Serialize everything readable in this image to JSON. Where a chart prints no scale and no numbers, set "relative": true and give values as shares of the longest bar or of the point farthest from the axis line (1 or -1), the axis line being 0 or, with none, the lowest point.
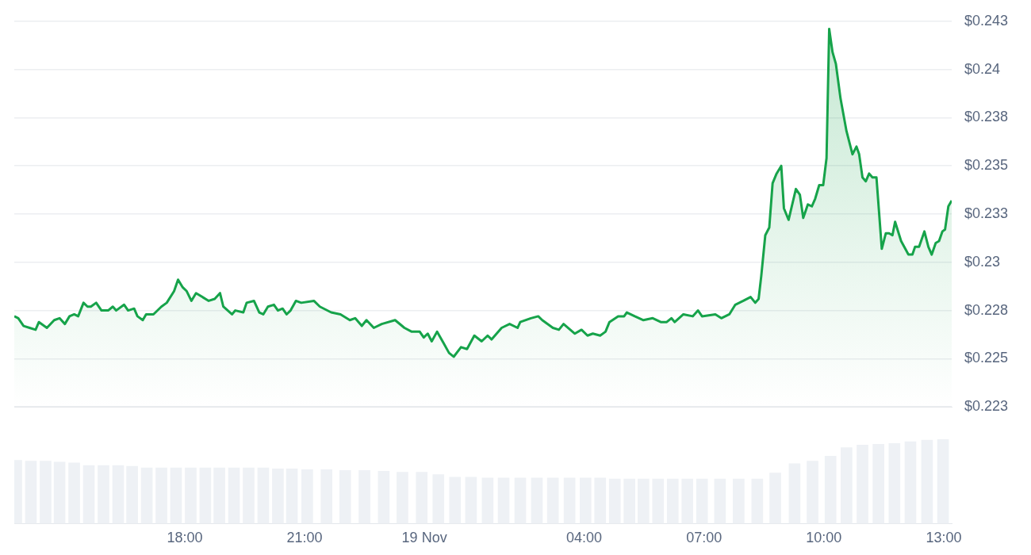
{
  "chart_data": [
    {
      "type": "area",
      "xlim": [
        "--11-18T13:44",
        "--11-19T13:12"
      ],
      "ylim": [
        0.2225,
        0.2425
      ],
      "tick_labels": "y",
      "grid": "y",
      "yticks": [
        {
          "value": 0.2225,
          "label": "$0.223"
        },
        {
          "value": 0.225,
          "label": "$0.225"
        },
        {
          "value": 0.2275,
          "label": "$0.228"
        },
        {
          "value": 0.23,
          "label": "$0.23"
        },
        {
          "value": 0.2325,
          "label": "$0.233"
        },
        {
          "value": 0.235,
          "label": "$0.235"
        },
        {
          "value": 0.2375,
          "label": "$0.238"
        },
        {
          "value": 0.24,
          "label": "$0.24"
        },
        {
          "value": 0.2425,
          "label": "$0.243"
        }
      ],
      "series": [
        {
          "color": "#16a34a",
          "x": [
            "--11-18T13:44",
            "--11-18T13:50",
            "--11-18T13:58",
            "--11-18T14:07",
            "--11-18T14:16",
            "--11-18T14:21",
            "--11-18T14:33",
            "--11-18T14:44",
            "--11-18T14:52",
            "--11-18T15:00",
            "--11-18T15:07",
            "--11-18T15:14",
            "--11-18T15:20",
            "--11-18T15:28",
            "--11-18T15:34",
            "--11-18T15:39",
            "--11-18T15:47",
            "--11-18T15:55",
            "--11-18T16:05",
            "--11-18T16:12",
            "--11-18T16:17",
            "--11-18T16:29",
            "--11-18T16:35",
            "--11-18T16:44",
            "--11-18T16:49",
            "--11-18T16:57",
            "--11-18T17:02",
            "--11-18T17:13",
            "--11-18T17:25",
            "--11-18T17:33",
            "--11-18T17:44",
            "--11-18T17:50",
            "--11-18T17:57",
            "--11-18T18:03",
            "--11-18T18:10",
            "--11-18T18:17",
            "--11-18T18:36",
            "--11-18T18:45",
            "--11-18T18:53",
            "--11-18T18:58",
            "--11-18T19:11",
            "--11-18T19:16",
            "--11-18T19:28",
            "--11-18T19:33",
            "--11-18T19:44",
            "--11-18T19:52",
            "--11-18T19:58",
            "--11-18T20:05",
            "--11-18T20:14",
            "--11-18T20:20",
            "--11-18T20:27",
            "--11-18T20:33",
            "--11-18T20:39",
            "--11-18T20:47",
            "--11-18T20:55",
            "--11-18T21:14",
            "--11-18T21:23",
            "--11-18T21:40",
            "--11-18T21:54",
            "--11-18T22:08",
            "--11-18T22:16",
            "--11-18T22:26",
            "--11-18T22:33",
            "--11-18T22:44",
            "--11-18T22:56",
            "--11-18T23:16",
            "--11-18T23:30",
            "--11-18T23:41",
            "--11-18T23:53",
            "--11-18T23:59",
            "--11-19T00:05",
            "--11-19T00:11",
            "--11-19T00:19",
            "--11-19T00:29",
            "--11-19T00:37",
            "--11-19T00:44",
            "--11-19T00:55",
            "--11-19T01:04",
            "--11-19T01:15",
            "--11-19T01:26",
            "--11-19T01:35",
            "--11-19T01:41",
            "--11-19T01:56",
            "--11-19T02:08",
            "--11-19T02:20",
            "--11-19T02:24",
            "--11-19T02:40",
            "--11-19T02:51",
            "--11-19T02:57",
            "--11-19T03:13",
            "--11-19T03:22",
            "--11-19T03:29",
            "--11-19T03:46",
            "--11-19T03:56",
            "--11-19T04:05",
            "--11-19T04:13",
            "--11-19T04:24",
            "--11-19T04:32",
            "--11-19T04:38",
            "--11-19T04:51",
            "--11-19T05:00",
            "--11-19T05:04",
            "--11-19T05:16",
            "--11-19T05:29",
            "--11-19T05:43",
            "--11-19T05:55",
            "--11-19T06:04",
            "--11-19T06:11",
            "--11-19T06:16",
            "--11-19T06:29",
            "--11-19T06:43",
            "--11-19T06:51",
            "--11-19T06:57",
            "--11-19T07:17",
            "--11-19T07:26",
            "--11-19T07:38",
            "--11-19T07:47",
            "--11-19T07:59",
            "--11-19T08:10",
            "--11-19T08:17",
            "--11-19T08:22",
            "--11-19T08:26",
            "--11-19T08:32",
            "--11-19T08:38",
            "--11-19T08:43",
            "--11-19T08:49",
            "--11-19T08:56",
            "--11-19T09:00",
            "--11-19T09:07",
            "--11-19T09:18",
            "--11-19T09:24",
            "--11-19T09:29",
            "--11-19T09:36",
            "--11-19T09:42",
            "--11-19T09:47",
            "--11-19T09:53",
            "--11-19T09:59",
            "--11-19T10:04",
            "--11-19T10:08",
            "--11-19T10:13",
            "--11-19T10:18",
            "--11-19T10:25",
            "--11-19T10:34",
            "--11-19T10:43",
            "--11-19T10:49",
            "--11-19T10:53",
            "--11-19T10:58",
            "--11-19T11:03",
            "--11-19T11:08",
            "--11-19T11:13",
            "--11-19T11:19",
            "--11-19T11:27",
            "--11-19T11:33",
            "--11-19T11:38",
            "--11-19T11:43",
            "--11-19T11:47",
            "--11-19T11:56",
            "--11-19T12:07",
            "--11-19T12:13",
            "--11-19T12:17",
            "--11-19T12:23",
            "--11-19T12:31",
            "--11-19T12:37",
            "--11-19T12:42",
            "--11-19T12:48",
            "--11-19T12:53",
            "--11-19T12:58",
            "--11-19T13:02",
            "--11-19T13:07",
            "--11-19T13:12"
          ],
          "values": [
            0.2272,
            0.2271,
            0.2267,
            0.2266,
            0.2265,
            0.2269,
            0.2266,
            0.227,
            0.2271,
            0.2268,
            0.2272,
            0.2273,
            0.2272,
            0.2279,
            0.2277,
            0.2277,
            0.2279,
            0.2275,
            0.2275,
            0.2277,
            0.2275,
            0.2278,
            0.2275,
            0.2276,
            0.2272,
            0.227,
            0.2273,
            0.2273,
            0.2277,
            0.2279,
            0.2285,
            0.2291,
            0.2287,
            0.2285,
            0.228,
            0.2284,
            0.228,
            0.2281,
            0.2284,
            0.2277,
            0.2273,
            0.2275,
            0.2274,
            0.2279,
            0.228,
            0.2274,
            0.2273,
            0.2277,
            0.2278,
            0.2275,
            0.2276,
            0.2273,
            0.2275,
            0.228,
            0.2279,
            0.228,
            0.2277,
            0.2274,
            0.2273,
            0.227,
            0.2271,
            0.2267,
            0.227,
            0.2266,
            0.2268,
            0.227,
            0.2266,
            0.2264,
            0.2264,
            0.2261,
            0.2263,
            0.2259,
            0.2264,
            0.2258,
            0.2253,
            0.2251,
            0.2256,
            0.2255,
            0.2262,
            0.2259,
            0.2262,
            0.226,
            0.2266,
            0.2268,
            0.2266,
            0.2269,
            0.2271,
            0.2272,
            0.227,
            0.2266,
            0.2265,
            0.2268,
            0.2263,
            0.2265,
            0.2262,
            0.2263,
            0.2262,
            0.2264,
            0.2269,
            0.2272,
            0.2272,
            0.2274,
            0.2272,
            0.227,
            0.2271,
            0.2269,
            0.2269,
            0.2271,
            0.2269,
            0.2273,
            0.2272,
            0.2275,
            0.2272,
            0.2273,
            0.2271,
            0.2273,
            0.2278,
            0.228,
            0.2282,
            0.2279,
            0.2281,
            0.2293,
            0.2314,
            0.2318,
            0.2341,
            0.2346,
            0.235,
            0.2328,
            0.2322,
            0.2338,
            0.2335,
            0.2323,
            0.233,
            0.2329,
            0.2333,
            0.234,
            0.234,
            0.2354,
            0.2421,
            0.2409,
            0.2403,
            0.2385,
            0.2368,
            0.2356,
            0.236,
            0.2356,
            0.2344,
            0.2342,
            0.2346,
            0.2344,
            0.2344,
            0.2307,
            0.2315,
            0.2315,
            0.2314,
            0.2321,
            0.2311,
            0.2304,
            0.2304,
            0.2308,
            0.2308,
            0.2316,
            0.2308,
            0.2304,
            0.231,
            0.2311,
            0.2316,
            0.2317,
            0.2329,
            0.2332
          ]
        }
      ]
    },
    {
      "type": "bar",
      "relative": true,
      "xlim": [
        "--11-18T13:44",
        "--11-19T13:12"
      ],
      "tick_labels": "x",
      "xticks": [
        {
          "value": "--11-18T18:00",
          "label": "18:00"
        },
        {
          "value": "--11-18T21:00",
          "label": "21:00"
        },
        {
          "value": "--11-19T00:00",
          "label": "19 Nov"
        },
        {
          "value": "--11-19T04:00",
          "label": "04:00"
        },
        {
          "value": "--11-19T07:00",
          "label": "07:00"
        },
        {
          "value": "--11-19T10:00",
          "label": "10:00"
        },
        {
          "value": "--11-19T13:00",
          "label": "13:00"
        }
      ],
      "series": [
        {
          "color": "#eef1f5",
          "x": [
            "--11-18T13:47",
            "--11-18T14:09",
            "--11-18T14:31",
            "--11-18T14:52",
            "--11-18T15:14",
            "--11-18T15:36",
            "--11-18T15:58",
            "--11-18T16:20",
            "--11-18T16:41",
            "--11-18T17:03",
            "--11-18T17:25",
            "--11-18T17:47",
            "--11-18T18:09",
            "--11-18T18:31",
            "--11-18T18:52",
            "--11-18T19:14",
            "--11-18T19:36",
            "--11-18T19:58",
            "--11-18T20:20",
            "--11-18T20:41",
            "--11-18T21:04",
            "--11-18T21:33",
            "--11-18T22:01",
            "--11-18T22:30",
            "--11-18T22:59",
            "--11-18T23:27",
            "--11-18T23:56",
            "--11-19T00:21",
            "--11-19T00:46",
            "--11-19T01:10",
            "--11-19T01:35",
            "--11-19T01:59",
            "--11-19T02:24",
            "--11-19T02:49",
            "--11-19T03:13",
            "--11-19T03:38",
            "--11-19T04:02",
            "--11-19T04:24",
            "--11-19T04:46",
            "--11-19T05:08",
            "--11-19T05:29",
            "--11-19T05:51",
            "--11-19T06:13",
            "--11-19T06:35",
            "--11-19T06:57",
            "--11-19T07:24",
            "--11-19T07:52",
            "--11-19T08:20",
            "--11-19T08:47",
            "--11-19T09:16",
            "--11-19T09:43",
            "--11-19T10:10",
            "--11-19T10:34",
            "--11-19T10:58",
            "--11-19T11:22",
            "--11-19T11:46",
            "--11-19T12:10",
            "--11-19T12:35",
            "--11-19T12:59"
          ],
          "values": [
            0.75,
            0.74,
            0.74,
            0.73,
            0.72,
            0.69,
            0.69,
            0.69,
            0.68,
            0.66,
            0.66,
            0.66,
            0.66,
            0.66,
            0.66,
            0.66,
            0.66,
            0.66,
            0.65,
            0.65,
            0.64,
            0.64,
            0.63,
            0.63,
            0.62,
            0.61,
            0.61,
            0.58,
            0.55,
            0.55,
            0.54,
            0.54,
            0.54,
            0.54,
            0.54,
            0.54,
            0.54,
            0.54,
            0.53,
            0.53,
            0.53,
            0.53,
            0.53,
            0.53,
            0.53,
            0.53,
            0.53,
            0.53,
            0.6,
            0.71,
            0.74,
            0.8,
            0.9,
            0.93,
            0.94,
            0.95,
            0.97,
            0.99,
            1
          ]
        }
      ]
    }
  ]
}
